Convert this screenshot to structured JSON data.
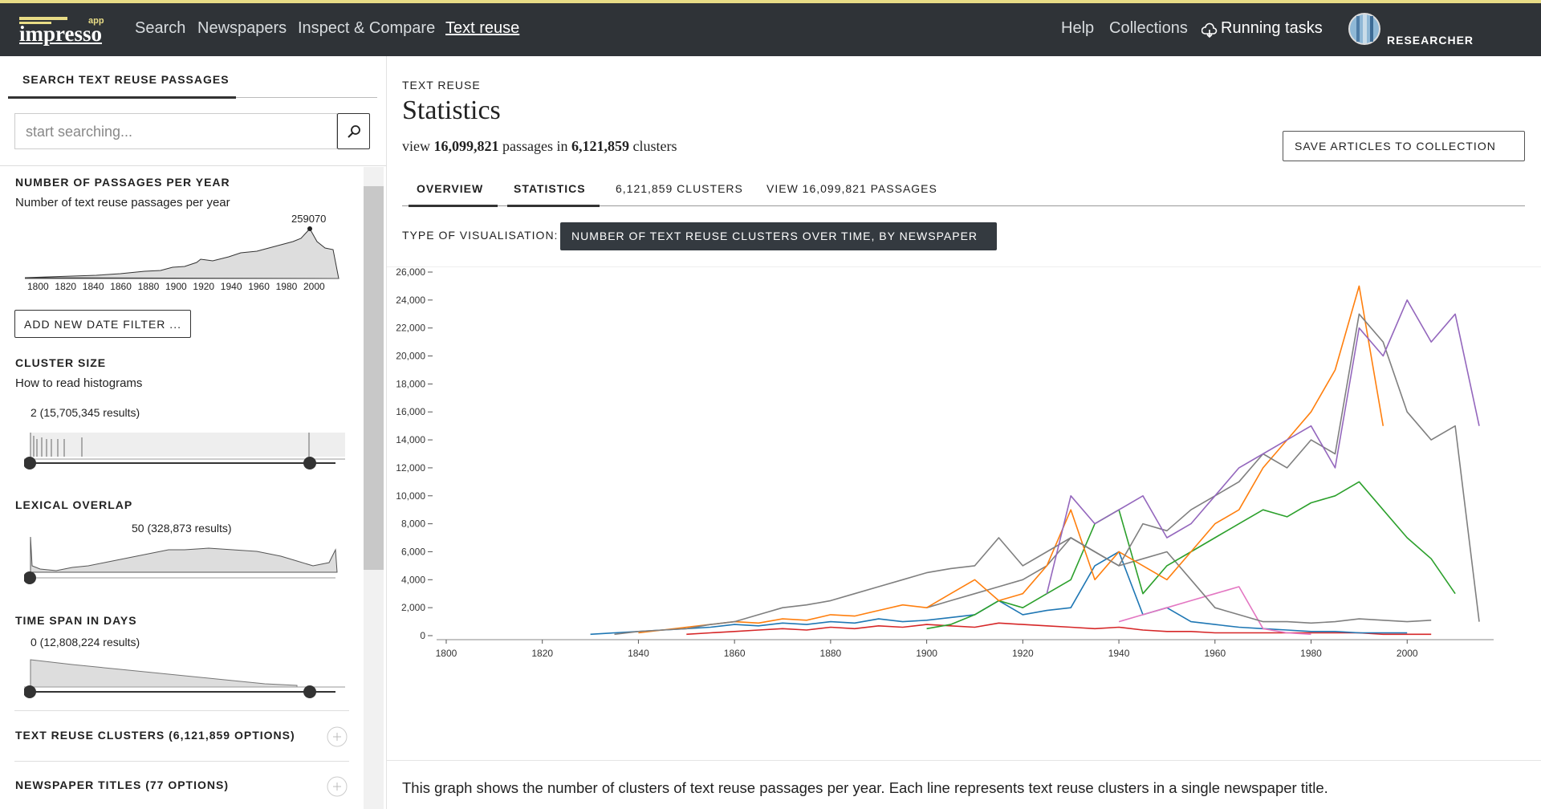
{
  "nav": {
    "logo": "impresso",
    "logo_badge": "app",
    "links": [
      "Search",
      "Newspapers",
      "Inspect & Compare",
      "Text reuse"
    ],
    "help": "Help",
    "collections": "Collections",
    "running_tasks": "Running tasks",
    "user": "RESEARCHER"
  },
  "sidebar": {
    "tab": "SEARCH TEXT REUSE PASSAGES",
    "search_placeholder": "start searching...",
    "passages_per_year": {
      "title": "NUMBER OF PASSAGES PER YEAR",
      "subtitle": "Number of text reuse passages per year",
      "peak_label": 259070,
      "x_labels": [
        1800,
        1820,
        1840,
        1860,
        1880,
        1900,
        1920,
        1940,
        1960,
        1980,
        2000
      ]
    },
    "add_date_filter": "ADD NEW DATE FILTER ...",
    "cluster_size": {
      "title": "CLUSTER SIZE",
      "help": "How to read histograms",
      "hover_label": "2 (15,705,345 results)"
    },
    "lexical_overlap": {
      "title": "LEXICAL OVERLAP",
      "hover_label": "50 (328,873 results)"
    },
    "time_span": {
      "title": "TIME SPAN IN DAYS",
      "hover_label": "0 (12,808,224 results)"
    },
    "facets": [
      "TEXT REUSE CLUSTERS (6,121,859 OPTIONS)",
      "NEWSPAPER TITLES (77 OPTIONS)"
    ]
  },
  "header": {
    "eyebrow": "TEXT REUSE",
    "title": "Statistics",
    "summary": [
      "view ",
      "16,099,821",
      " passages in ",
      "6,121,859",
      " clusters"
    ],
    "save_button": "SAVE ARTICLES TO COLLECTION"
  },
  "tabs": [
    "OVERVIEW",
    "STATISTICS",
    "6,121,859 CLUSTERS",
    "VIEW 16,099,821 PASSAGES"
  ],
  "visualisation": {
    "label": "TYPE OF VISUALISATION:",
    "selected": "NUMBER OF TEXT REUSE CLUSTERS OVER TIME, BY NEWSPAPER"
  },
  "chart_data": {
    "type": "line",
    "x": [
      1800,
      1805,
      1810,
      1815,
      1820,
      1825,
      1830,
      1835,
      1840,
      1845,
      1850,
      1855,
      1860,
      1865,
      1870,
      1875,
      1880,
      1885,
      1890,
      1895,
      1900,
      1905,
      1910,
      1915,
      1920,
      1925,
      1930,
      1935,
      1940,
      1945,
      1950,
      1955,
      1960,
      1965,
      1970,
      1975,
      1980,
      1985,
      1990,
      1995,
      2000,
      2005,
      2010,
      2015
    ],
    "xlim": [
      1798,
      2018
    ],
    "xticks": [
      1800,
      1820,
      1840,
      1860,
      1880,
      1900,
      1920,
      1940,
      1960,
      1980,
      2000
    ],
    "ylim": [
      0,
      26000
    ],
    "yticks": [
      0,
      {
        "value": 2000,
        "label": "2,000"
      },
      {
        "value": 4000,
        "label": "4,000"
      },
      {
        "value": 6000,
        "label": "6,000"
      },
      {
        "value": 8000,
        "label": "8,000"
      },
      {
        "value": 10000,
        "label": "10,000"
      },
      {
        "value": 12000,
        "label": "12,000"
      },
      {
        "value": 14000,
        "label": "14,000"
      },
      {
        "value": 16000,
        "label": "16,000"
      },
      {
        "value": 18000,
        "label": "18,000"
      },
      {
        "value": 20000,
        "label": "20,000"
      },
      {
        "value": 22000,
        "label": "22,000"
      },
      {
        "value": 24000,
        "label": "24,000"
      },
      {
        "value": 26000,
        "label": "26,000"
      }
    ],
    "series": [
      {
        "color": "#d62728",
        "values": [
          null,
          null,
          null,
          null,
          null,
          null,
          null,
          null,
          null,
          null,
          100,
          200,
          300,
          400,
          500,
          400,
          600,
          500,
          700,
          600,
          800,
          700,
          600,
          900,
          800,
          700,
          600,
          500,
          600,
          400,
          300,
          300,
          200,
          200,
          200,
          200,
          200,
          200,
          200,
          100,
          100,
          100,
          null,
          null
        ]
      },
      {
        "color": "#1f77b4",
        "values": [
          null,
          null,
          null,
          null,
          null,
          null,
          100,
          200,
          300,
          400,
          500,
          600,
          800,
          700,
          900,
          800,
          1000,
          900,
          1200,
          1000,
          1100,
          1300,
          1500,
          2500,
          1500,
          1800,
          2000,
          5000,
          6000,
          1500,
          2000,
          1000,
          800,
          600,
          500,
          400,
          300,
          300,
          200,
          200,
          200,
          null,
          null,
          null
        ]
      },
      {
        "color": "#e377c2",
        "values": [
          null,
          null,
          null,
          null,
          null,
          null,
          null,
          null,
          null,
          null,
          null,
          null,
          null,
          null,
          null,
          null,
          null,
          null,
          null,
          null,
          null,
          null,
          null,
          null,
          null,
          null,
          null,
          null,
          1000,
          1500,
          2000,
          2500,
          3000,
          3500,
          500,
          200,
          100,
          null,
          null,
          null,
          null,
          null,
          null,
          null
        ]
      },
      {
        "color": "#7f7f7f",
        "values": [
          null,
          null,
          null,
          null,
          null,
          null,
          null,
          null,
          null,
          null,
          null,
          null,
          null,
          null,
          null,
          null,
          null,
          null,
          null,
          null,
          2000,
          2500,
          3000,
          3500,
          4000,
          5000,
          7000,
          6000,
          5000,
          5500,
          6000,
          4000,
          2000,
          1500,
          1000,
          1000,
          900,
          1000,
          1200,
          1100,
          1000,
          1100,
          null,
          null
        ]
      },
      {
        "color": "#2ca02c",
        "values": [
          null,
          null,
          null,
          null,
          null,
          null,
          null,
          null,
          null,
          null,
          null,
          null,
          null,
          null,
          null,
          null,
          null,
          null,
          null,
          null,
          500,
          800,
          1500,
          2500,
          2000,
          3000,
          4000,
          8000,
          9000,
          3000,
          5000,
          6000,
          7000,
          8000,
          9000,
          8500,
          9500,
          10000,
          11000,
          9000,
          7000,
          5500,
          3000,
          null
        ]
      },
      {
        "color": "#ff7f0e",
        "values": [
          null,
          null,
          null,
          null,
          null,
          null,
          null,
          null,
          200,
          400,
          600,
          800,
          1000,
          900,
          1200,
          1100,
          1500,
          1400,
          1800,
          2200,
          2000,
          3000,
          4000,
          2500,
          3000,
          5000,
          9000,
          4000,
          6000,
          5000,
          4000,
          6000,
          8000,
          9000,
          12000,
          14000,
          16000,
          19000,
          25000,
          15000,
          null,
          null,
          null,
          null
        ]
      },
      {
        "color": "#7f7f7f",
        "values": [
          null,
          null,
          null,
          null,
          null,
          null,
          null,
          100,
          300,
          400,
          500,
          800,
          1000,
          1500,
          2000,
          2200,
          2500,
          3000,
          3500,
          4000,
          4500,
          4800,
          5000,
          7000,
          5000,
          6000,
          7000,
          6000,
          5000,
          8000,
          7500,
          9000,
          10000,
          11000,
          13000,
          12000,
          14000,
          13000,
          23000,
          21000,
          16000,
          14000,
          15000,
          1000
        ]
      },
      {
        "color": "#9467bd",
        "values": [
          null,
          null,
          null,
          null,
          null,
          null,
          null,
          null,
          null,
          null,
          null,
          null,
          null,
          null,
          null,
          null,
          null,
          null,
          null,
          null,
          null,
          null,
          null,
          null,
          null,
          3000,
          10000,
          8000,
          9000,
          10000,
          7000,
          8000,
          10000,
          12000,
          13000,
          14000,
          15000,
          12000,
          22000,
          20000,
          24000,
          21000,
          23000,
          15000
        ]
      }
    ]
  },
  "footer": {
    "caption": "This graph shows the number of clusters of text reuse passages per year. Each line represents text reuse clusters in a single newspaper title."
  }
}
